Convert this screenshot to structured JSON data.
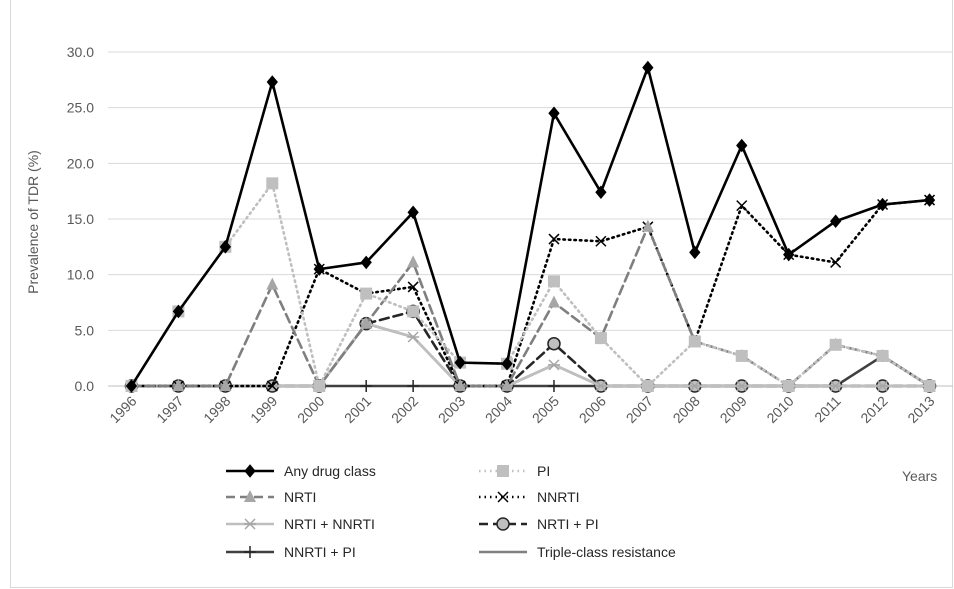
{
  "chart_data": {
    "type": "line",
    "title": "",
    "xlabel": "Years",
    "ylabel": "Prevalence of TDR (%)",
    "ylim": [
      0,
      30
    ],
    "yticks": [
      "0.0",
      "5.0",
      "10.0",
      "15.0",
      "20.0",
      "25.0",
      "30.0"
    ],
    "categories": [
      "1996",
      "1997",
      "1998",
      "1999",
      "2000",
      "2001",
      "2002",
      "2003",
      "2004",
      "2005",
      "2006",
      "2007",
      "2008",
      "2009",
      "2010",
      "2011",
      "2012",
      "2013"
    ],
    "grid": "horizontal",
    "legend_position": "bottom",
    "series": [
      {
        "name": "Any drug class",
        "color": "#000000",
        "dash": "solid",
        "marker": "diamond",
        "marker_color": "#000000",
        "values": [
          0,
          6.7,
          12.5,
          27.3,
          10.5,
          11.1,
          15.6,
          2.1,
          2.0,
          24.5,
          17.4,
          28.6,
          12.0,
          21.6,
          11.8,
          14.8,
          16.3,
          16.7
        ]
      },
      {
        "name": "PI",
        "color": "#bfbfbf",
        "dash": "dot",
        "marker": "square",
        "marker_color": "#bfbfbf",
        "values": [
          0,
          6.7,
          12.5,
          18.2,
          0,
          8.3,
          6.7,
          2.1,
          2.0,
          9.4,
          4.3,
          0,
          4.0,
          2.7,
          0,
          3.7,
          2.7,
          0
        ]
      },
      {
        "name": "NRTI",
        "color": "#7f7f7f",
        "dash": "dash",
        "marker": "triangle",
        "marker_color": "#a6a6a6",
        "values": [
          0,
          0,
          0,
          9.1,
          0,
          5.6,
          11.1,
          0,
          0,
          7.5,
          4.3,
          14.3,
          4.0,
          2.7,
          0,
          3.7,
          2.7,
          0
        ]
      },
      {
        "name": "NNRTI",
        "color": "#000000",
        "dash": "dot",
        "marker": "x",
        "marker_color": "#000000",
        "values": [
          0,
          0,
          0,
          0,
          10.5,
          8.3,
          8.9,
          0,
          0,
          13.2,
          13.0,
          14.3,
          4.0,
          16.2,
          11.8,
          11.1,
          16.3,
          16.7
        ]
      },
      {
        "name": "NRTI + NNRTI",
        "color": "#bfbfbf",
        "dash": "solid",
        "marker": "star",
        "marker_color": "#a6a6a6",
        "values": [
          0,
          0,
          0,
          0,
          0,
          5.6,
          4.4,
          0,
          0,
          1.9,
          0,
          0,
          0,
          0,
          0,
          0,
          0,
          0
        ]
      },
      {
        "name": "NRTI + PI",
        "color": "#262626",
        "dash": "dash",
        "marker": "circle",
        "marker_color": "#bfbfbf",
        "values": [
          0,
          0,
          0,
          0,
          0,
          5.6,
          6.7,
          0,
          0,
          3.8,
          0,
          0,
          0,
          0,
          0,
          0,
          0,
          0
        ]
      },
      {
        "name": "NNRTI + PI",
        "color": "#404040",
        "dash": "solid",
        "marker": "plus",
        "marker_color": "#262626",
        "values": [
          0,
          0,
          0,
          0,
          0,
          0,
          0,
          0,
          0,
          0,
          0,
          0,
          0,
          0,
          0,
          0,
          2.7,
          0
        ]
      },
      {
        "name": "Triple-class resistance",
        "color": "#808080",
        "dash": "solid",
        "marker": "none",
        "marker_color": "#808080",
        "values": [
          0,
          0,
          0,
          0,
          0,
          5.6,
          4.4,
          0,
          0,
          1.9,
          0,
          0,
          0,
          0,
          0,
          0,
          0,
          0
        ]
      }
    ]
  }
}
